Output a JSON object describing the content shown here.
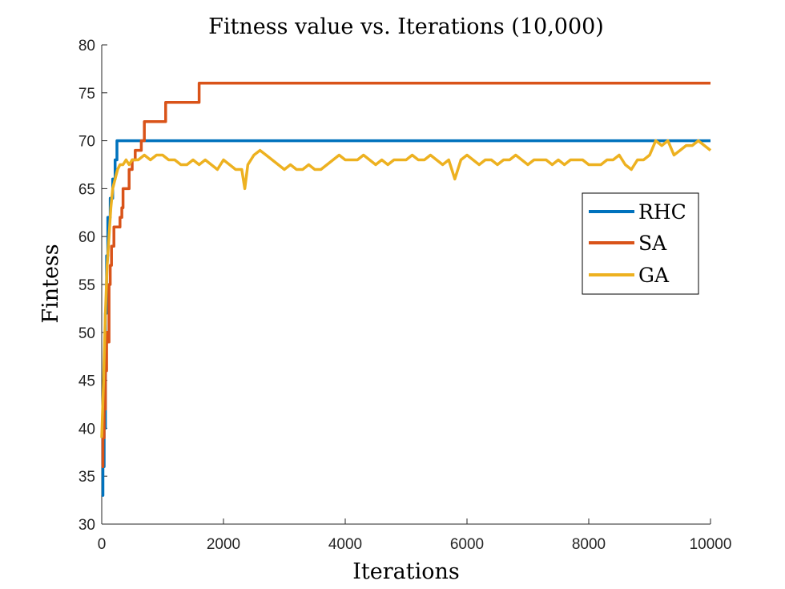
{
  "chart_data": {
    "type": "line",
    "title": "Fitness value vs. Iterations (10,000)",
    "xlabel": "Iterations",
    "ylabel": "Fintess",
    "xlim": [
      0,
      10000
    ],
    "ylim": [
      30,
      80
    ],
    "xticks": [
      0,
      2000,
      4000,
      6000,
      8000,
      10000
    ],
    "xtick_labels": [
      "0",
      "2000",
      "4000",
      "6000",
      "8000",
      "10000"
    ],
    "yticks": [
      30,
      35,
      40,
      45,
      50,
      55,
      60,
      65,
      70,
      75,
      80
    ],
    "ytick_labels": [
      "30",
      "35",
      "40",
      "45",
      "50",
      "55",
      "60",
      "65",
      "70",
      "75",
      "80"
    ],
    "grid": false,
    "legend_position": "right",
    "series": [
      {
        "name": "RHC",
        "color": "#0072BD",
        "x": [
          0,
          20,
          20,
          40,
          40,
          60,
          60,
          80,
          80,
          100,
          100,
          140,
          140,
          180,
          180,
          220,
          220,
          250,
          250,
          10000
        ],
        "y": [
          33,
          33,
          36,
          36,
          40,
          40,
          52,
          52,
          58,
          58,
          62,
          62,
          64,
          64,
          66,
          66,
          68,
          68,
          70,
          70
        ]
      },
      {
        "name": "SA",
        "color": "#D95319",
        "x": [
          0,
          20,
          20,
          40,
          40,
          60,
          60,
          80,
          80,
          100,
          100,
          120,
          120,
          140,
          140,
          160,
          160,
          200,
          200,
          300,
          300,
          330,
          330,
          350,
          350,
          400,
          400,
          450,
          450,
          500,
          500,
          550,
          550,
          600,
          600,
          650,
          650,
          700,
          700,
          1050,
          1050,
          1600,
          1600,
          2750,
          2750,
          10000
        ],
        "y": [
          36,
          36,
          39,
          39,
          42,
          42,
          46,
          46,
          50,
          50,
          49,
          49,
          55,
          55,
          57,
          57,
          59,
          59,
          61,
          61,
          62,
          62,
          63,
          63,
          65,
          65,
          65,
          65,
          67,
          67,
          68,
          68,
          69,
          69,
          69,
          69,
          70,
          70,
          72,
          72,
          74,
          74,
          76,
          76,
          76,
          76
        ]
      },
      {
        "name": "GA",
        "color": "#EDB120",
        "x": [
          0,
          30,
          60,
          90,
          120,
          150,
          180,
          220,
          260,
          300,
          350,
          400,
          450,
          500,
          600,
          700,
          800,
          900,
          1000,
          1100,
          1200,
          1300,
          1400,
          1500,
          1600,
          1700,
          1800,
          1900,
          2000,
          2100,
          2200,
          2300,
          2350,
          2400,
          2500,
          2600,
          2700,
          2800,
          2900,
          3000,
          3100,
          3200,
          3300,
          3400,
          3500,
          3600,
          3700,
          3800,
          3900,
          4000,
          4100,
          4200,
          4300,
          4400,
          4500,
          4600,
          4700,
          4800,
          4900,
          5000,
          5100,
          5200,
          5300,
          5400,
          5500,
          5600,
          5700,
          5800,
          5850,
          5900,
          6000,
          6100,
          6200,
          6300,
          6400,
          6500,
          6600,
          6700,
          6800,
          6900,
          7000,
          7100,
          7200,
          7300,
          7400,
          7500,
          7600,
          7700,
          7800,
          7900,
          8000,
          8100,
          8200,
          8300,
          8400,
          8500,
          8600,
          8700,
          8800,
          8900,
          9000,
          9100,
          9200,
          9300,
          9400,
          9500,
          9600,
          9700,
          9800,
          9900,
          10000
        ],
        "y": [
          39,
          45,
          52,
          57,
          60,
          63,
          65,
          66,
          67,
          67.5,
          67.5,
          68,
          67.5,
          68,
          68,
          68.5,
          68,
          68.5,
          68.5,
          68,
          68,
          67.5,
          67.5,
          68,
          67.5,
          68,
          67.5,
          67,
          68,
          67.5,
          67,
          67,
          65,
          67.5,
          68.5,
          69,
          68.5,
          68,
          67.5,
          67,
          67.5,
          67,
          67,
          67.5,
          67,
          67,
          67.5,
          68,
          68.5,
          68,
          68,
          68,
          68.5,
          68,
          67.5,
          68,
          67.5,
          68,
          68,
          68,
          68.5,
          68,
          68,
          68.5,
          68,
          67.5,
          68,
          66,
          67,
          68,
          68.5,
          68,
          67.5,
          68,
          68,
          67.5,
          68,
          68,
          68.5,
          68,
          67.5,
          68,
          68,
          68,
          67.5,
          68,
          67.5,
          68,
          68,
          68,
          67.5,
          67.5,
          67.5,
          68,
          68,
          68.5,
          67.5,
          67,
          68,
          68,
          68.5,
          70,
          69.5,
          70,
          68.5,
          69,
          69.5,
          69.5,
          70,
          69.5,
          69
        ]
      }
    ]
  }
}
